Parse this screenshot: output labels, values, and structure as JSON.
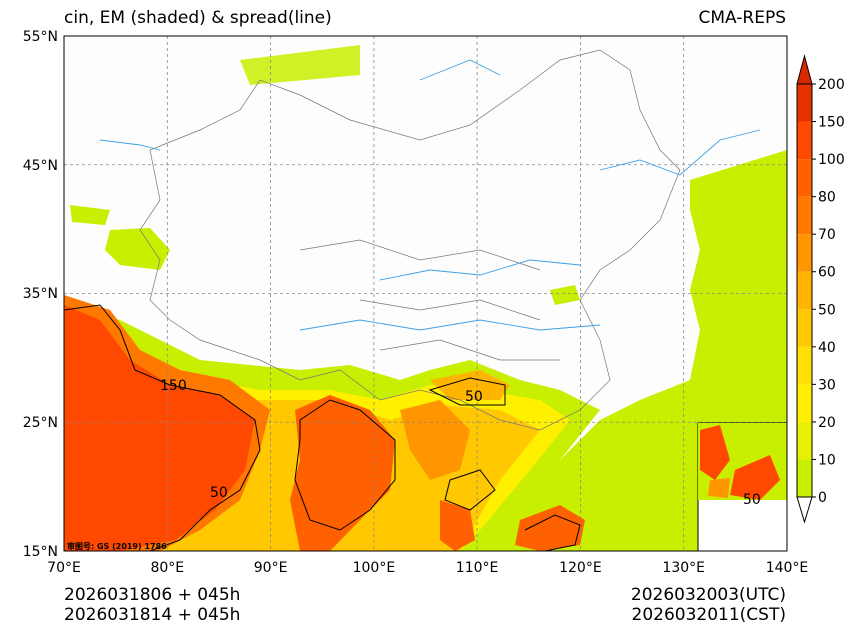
{
  "header": {
    "title": "cin, EM (shaded) & spread(line)",
    "source": "CMA-REPS"
  },
  "footer": {
    "init_utc": "2026031806  +  045h",
    "init_cst": "2026031814  +  045h",
    "valid_utc": "2026032003(UTC)",
    "valid_cst": "2026032011(CST)"
  },
  "map": {
    "lat_labels": [
      "55°N",
      "45°N",
      "35°N",
      "25°N",
      "15°N"
    ],
    "lon_labels": [
      "70°E",
      "80°E",
      "90°E",
      "100°E",
      "110°E",
      "120°E",
      "130°E",
      "140°E"
    ],
    "credit": "审图号: GS (2019) 1786",
    "contour_labels": [
      "150",
      "50",
      "50",
      "50"
    ]
  },
  "colorbar": {
    "levels": [
      "0",
      "10",
      "20",
      "30",
      "40",
      "50",
      "60",
      "70",
      "80",
      "100",
      "150",
      "200"
    ],
    "colors": [
      "#c8f000",
      "#e6f000",
      "#fff000",
      "#ffe000",
      "#ffc800",
      "#ffb400",
      "#ff9600",
      "#ff7800",
      "#ff6000",
      "#ff4800",
      "#e63200"
    ],
    "over_color": "#d92800"
  },
  "colors": {
    "land_fill": "#c8ee00",
    "hot": "#ff5a00",
    "river": "#3ca0e6"
  }
}
